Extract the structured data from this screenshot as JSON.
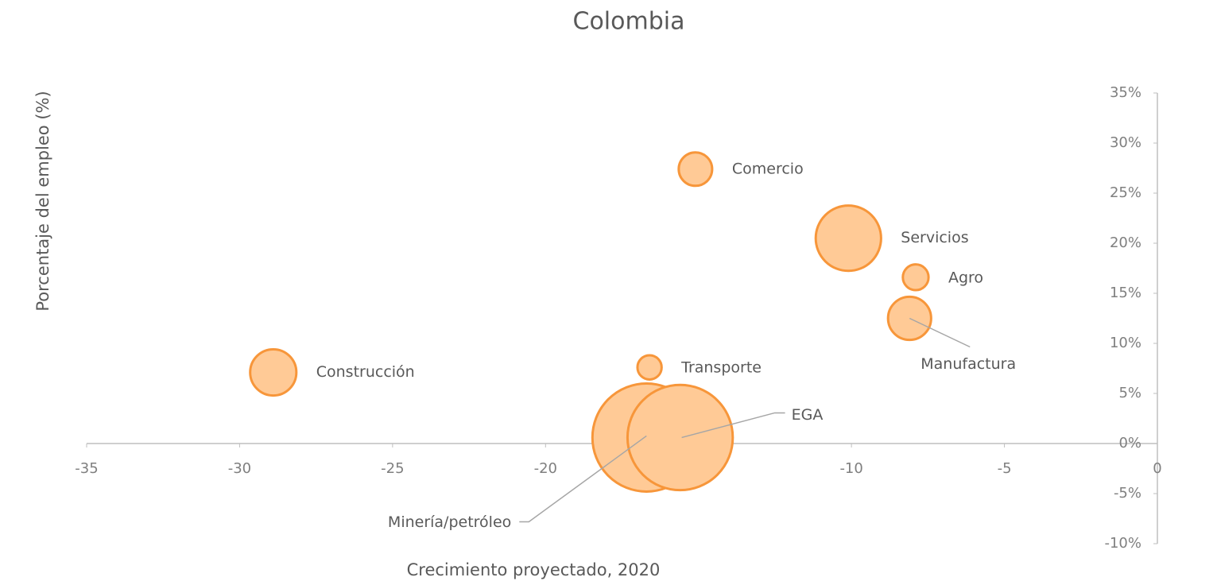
{
  "chart_data": {
    "type": "bubble",
    "title": "Colombia",
    "x_label": "Crecimiento proyectado, 2020",
    "y_label": "Porcentaje del empleo (%)",
    "labels": [
      "Construcción",
      "Comercio",
      "Servicios",
      "Agro",
      "Manufactura",
      "Transporte",
      "Minería/petróleo",
      "EGA"
    ],
    "x": [
      -28.9,
      -15.1,
      -10.1,
      -7.9,
      -8.1,
      -16.6,
      -16.7,
      -15.6
    ],
    "y": [
      7.1,
      27.4,
      20.5,
      16.6,
      12.5,
      7.6,
      0.6,
      0.6
    ],
    "sizes": [
      8.4,
      4.4,
      16.8,
      2.6,
      7.3,
      2.3,
      46,
      43.6
    ],
    "color": "#ffca96",
    "edge_color": "#f7963a",
    "xlim": [
      -35,
      0
    ],
    "xticks": [
      -35,
      -30,
      -25,
      -20,
      -15,
      -10,
      -5,
      0
    ],
    "ylim": [
      -10,
      35
    ],
    "yticks": [
      {
        "value": -10,
        "label": "-10%"
      },
      {
        "value": -5,
        "label": "-5%"
      },
      {
        "value": 0,
        "label": "0%"
      },
      {
        "value": 5,
        "label": "5%"
      },
      {
        "value": 10,
        "label": "10%"
      },
      {
        "value": 15,
        "label": "15%"
      },
      {
        "value": 20,
        "label": "20%"
      },
      {
        "value": 25,
        "label": "25%"
      },
      {
        "value": 30,
        "label": "30%"
      },
      {
        "value": 35,
        "label": "35%"
      }
    ],
    "grid": false
  }
}
